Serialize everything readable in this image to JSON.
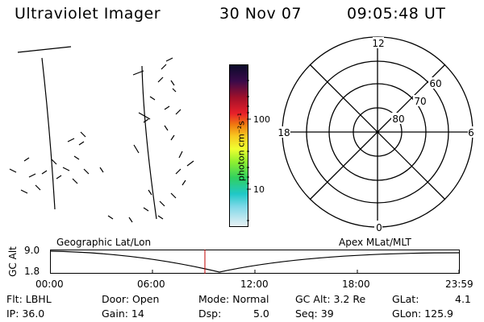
{
  "header": {
    "title": "Ultraviolet Imager",
    "date": "30 Nov 07",
    "time": "09:05:48 UT"
  },
  "colorbar": {
    "label": "photon cm⁻²s⁻¹",
    "ticks": [
      "100",
      "10"
    ]
  },
  "polar": {
    "hour_labels": {
      "top": "12",
      "left": "18",
      "right": "6",
      "bottom": "0"
    },
    "lat_labels": [
      "60",
      "70",
      "80"
    ]
  },
  "altitude": {
    "axis_label": "GC Alt",
    "left_title": "Geographic Lat/Lon",
    "right_title": "Apex MLat/MLT",
    "y_ticks": [
      "9.0",
      "1.8"
    ],
    "x_ticks": [
      "00:00",
      "06:00",
      "12:00",
      "18:00",
      "23:59"
    ]
  },
  "footer": {
    "flt": "Flt: LBHL",
    "ip": "IP: 36.0",
    "door": "Door: Open",
    "gain": "Gain: 14",
    "mode": "Mode: Normal",
    "dsp_label": "Dsp:",
    "dsp_value": "5.0",
    "gcalt": "GC Alt: 3.2 Re",
    "seq": "Seq: 39",
    "glat_label": "GLat:",
    "glat_value": "4.1",
    "glon": "GLon: 125.9"
  }
}
